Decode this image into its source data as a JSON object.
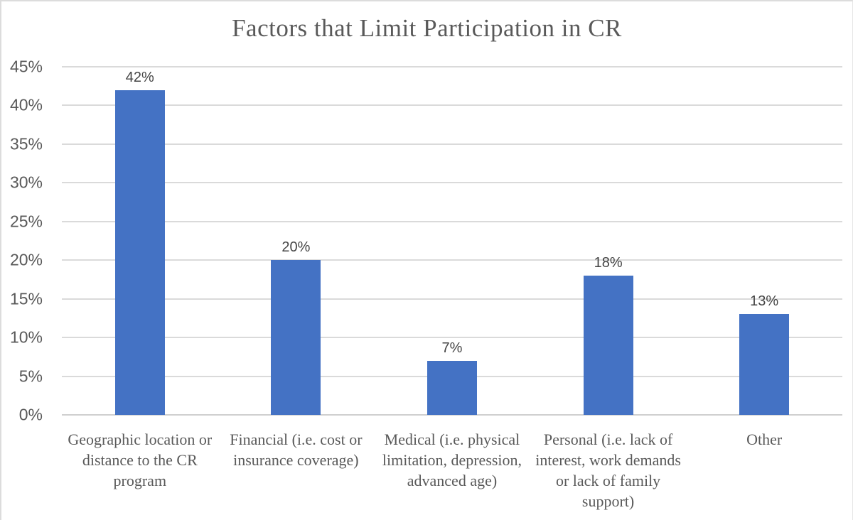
{
  "chart_data": {
    "type": "bar",
    "title": "Factors that Limit Participation in CR",
    "categories": [
      "Geographic location or distance to the CR program",
      "Financial (i.e. cost or insurance coverage)",
      "Medical (i.e. physical limitation, depression, advanced age)",
      "Personal (i.e. lack of interest, work demands or lack of family support)",
      "Other"
    ],
    "values": [
      42,
      20,
      7,
      18,
      13
    ],
    "data_labels": [
      "42%",
      "20%",
      "7%",
      "18%",
      "13%"
    ],
    "xlabel": "",
    "ylabel": "",
    "ylim": [
      0,
      45
    ],
    "ytick_step": 5,
    "ytick_labels": [
      "0%",
      "5%",
      "10%",
      "15%",
      "20%",
      "25%",
      "30%",
      "35%",
      "40%",
      "45%"
    ],
    "grid": "horizontal",
    "legend": "none",
    "bar_color": "#4472C4",
    "gridline_color": "#dadada",
    "text_color": "#595959",
    "datalabel_color": "#444444"
  }
}
